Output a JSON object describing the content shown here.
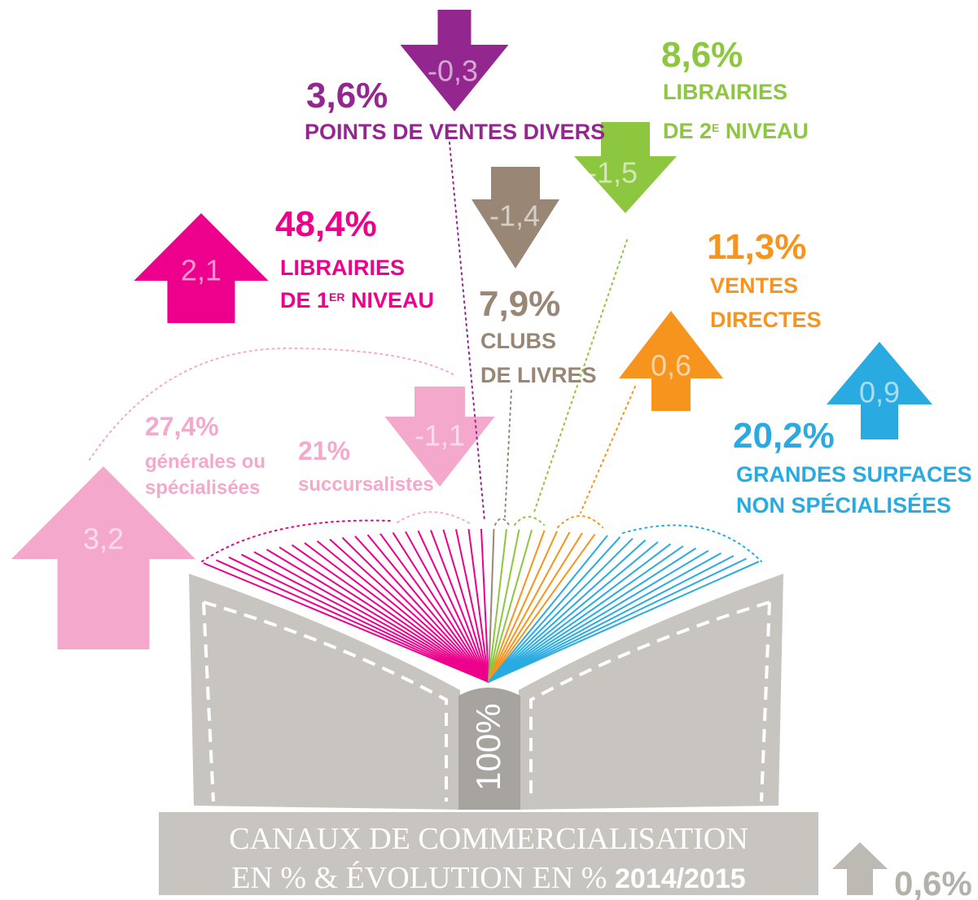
{
  "title": {
    "line1": "CANAUX DE COMMERCIALISATION",
    "line2": "EN % & ÉVOLUTION EN % ",
    "period": "2014/2015"
  },
  "total": "100%",
  "overall_change": "0,6%",
  "channels": [
    {
      "share": "3,6%",
      "lines": [
        "POINTS DE VENTES DIVERS"
      ],
      "change": "-0,3",
      "color": "#93278f"
    },
    {
      "share": "8,6%",
      "lines": [
        "LIBRAIRIES",
        {
          "text": "DE 2",
          "sup": "E",
          "rest": " NIVEAU"
        }
      ],
      "change": "-1,5",
      "color": "#8dc63f"
    },
    {
      "share": "7,9%",
      "lines": [
        "CLUBS",
        "DE LIVRES"
      ],
      "change": "-1,4",
      "color": "#998675"
    },
    {
      "share": "11,3%",
      "lines": [
        "VENTES",
        "DIRECTES"
      ],
      "change": "0,6",
      "color": "#f7941d"
    },
    {
      "share": "20,2%",
      "lines": [
        "GRANDES SURFACES",
        "NON SPÉCIALISÉES"
      ],
      "change": "0,9",
      "color": "#29abe2"
    },
    {
      "share": "48,4%",
      "lines": [
        "LIBRAIRIES",
        {
          "text": "DE 1",
          "sup": "ER",
          "rest": " NIVEAU"
        }
      ],
      "change": "2,1",
      "color": "#ec008c",
      "subchannels": [
        {
          "share": "27,4%",
          "lines": [
            "générales ou",
            "spécialisées"
          ],
          "change": "3,2",
          "color": "#f4a9cc"
        },
        {
          "share": "21%",
          "lines": [
            "succursalistes"
          ],
          "change": "-1,1",
          "color": "#f4a9cc"
        }
      ]
    }
  ]
}
